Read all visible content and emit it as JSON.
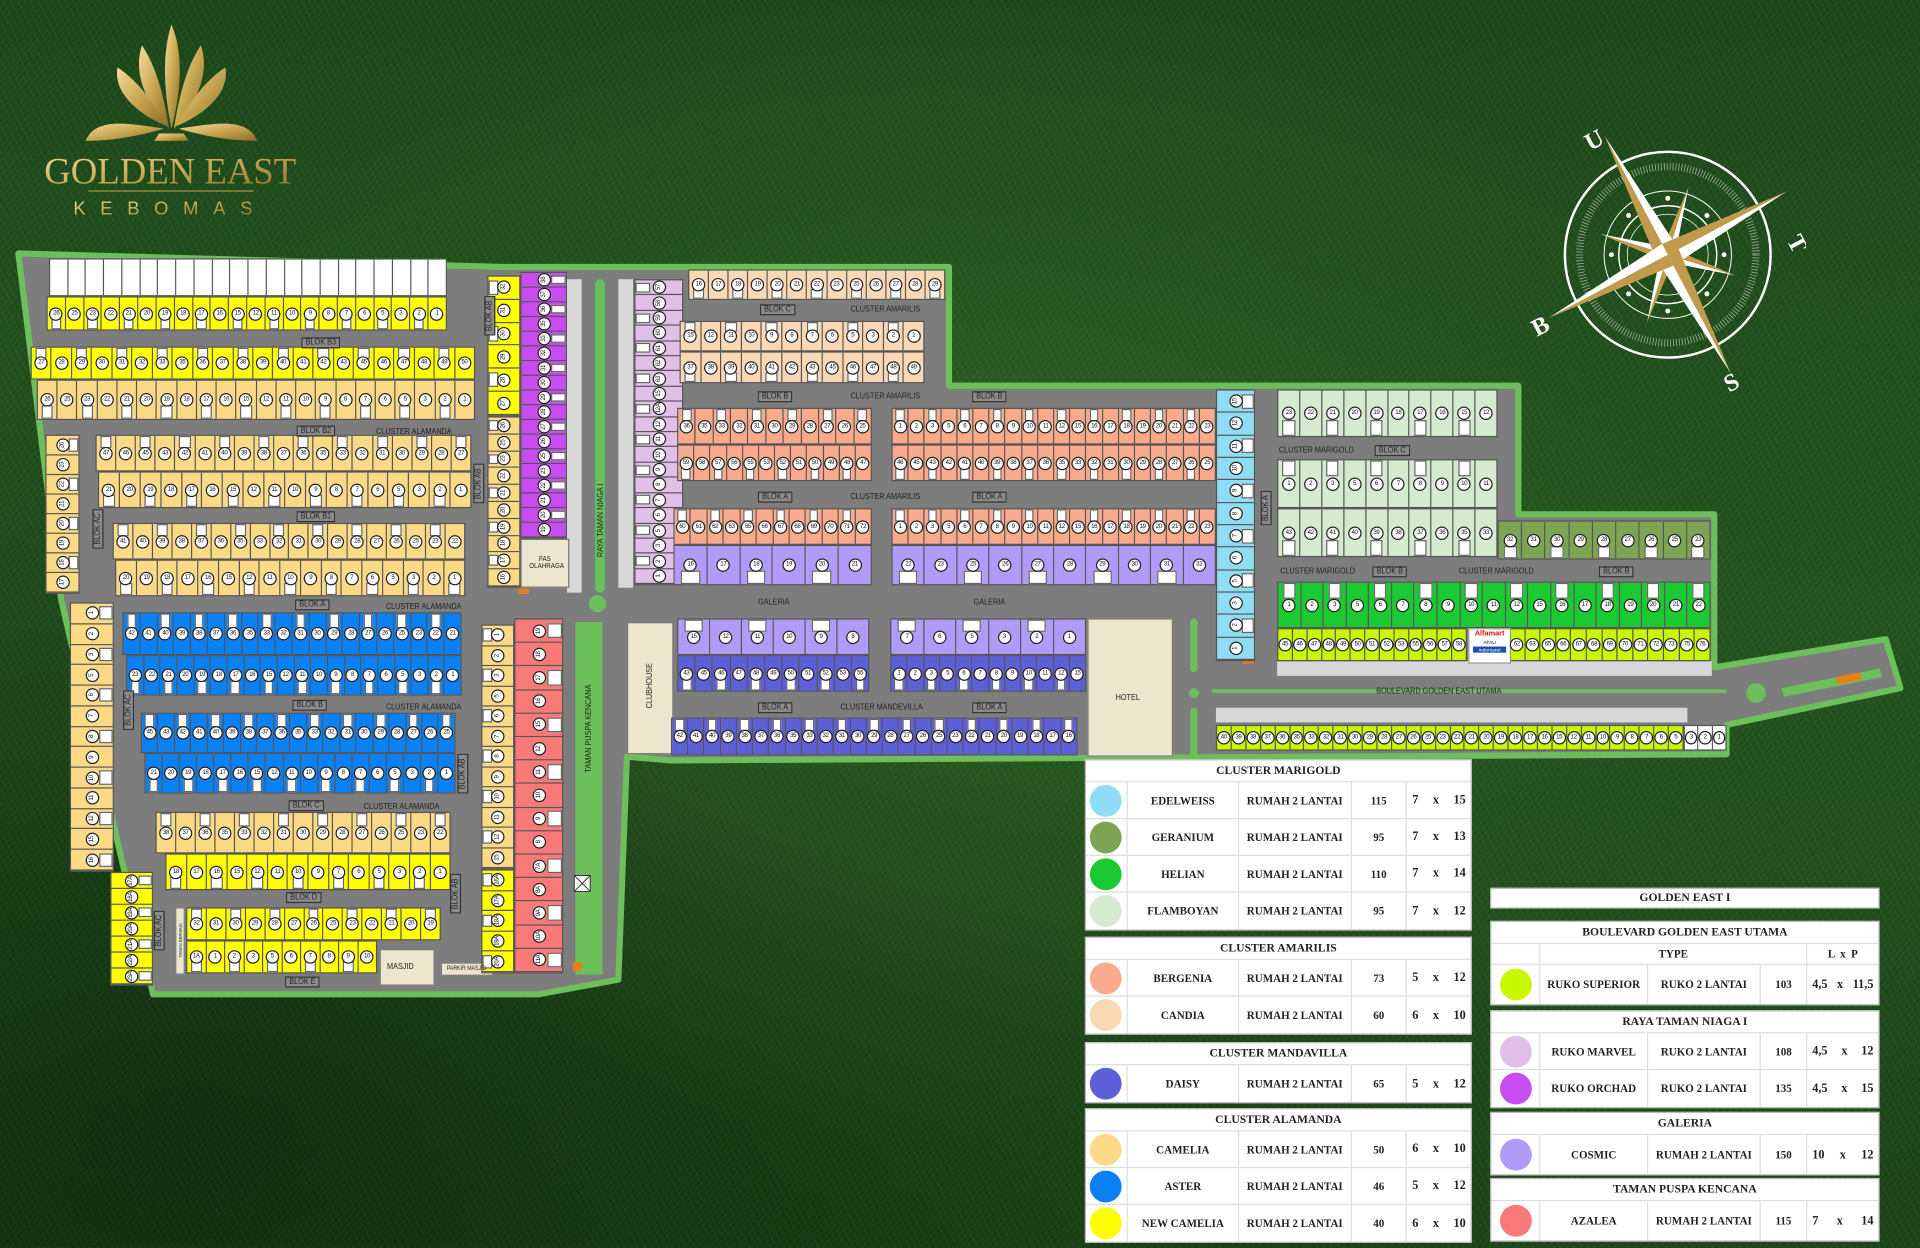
{
  "logo": {
    "title": "GOLDEN EAST",
    "subtitle": "KEBOMAS",
    "color": "#c8a752"
  },
  "compass": {
    "north": "U",
    "east": "T",
    "south": "S",
    "west": "B"
  },
  "colors": {
    "new_camelia": "#ffff00",
    "camelia": "#fbd985",
    "aster": "#0a80f5",
    "bergenia": "#f9a98c",
    "candia": "#fad8b4",
    "daisy": "#5d5fd8",
    "cosmic": "#b09cf8",
    "azalea": "#f87a78",
    "edelweiss": "#8fdcf5",
    "geranium": "#7da453",
    "helian": "#1bc933",
    "flamboyan": "#d4ebcf",
    "superior": "#c8f700",
    "marvel": "#e0c0e6",
    "orchad": "#c94cf0",
    "unsold": "#ffffff",
    "road": "#7d7d7d",
    "green": "#6cbf5a"
  },
  "map_labels": [
    "BLOK B3",
    "BLOK B2",
    "CLUSTER ALAMANDA",
    "BLOK B1",
    "BLOK A",
    "CLUSTER ALAMANDA",
    "BLOK B",
    "CLUSTER ALAMANDA",
    "BLOK C",
    "CLUSTER ALAMANDA",
    "BLOK D",
    "BLOK E",
    "BLOK AC",
    "BLOK AC",
    "BLOK AC",
    "BLOK AB",
    "BLOK AB",
    "BLOK AB",
    "BLOK AB",
    "RAYA TAMAN NIAGA I",
    "TAMAN PUSPA KENCANA",
    "FAS OLAHRAGA",
    "CLUBHOUSE",
    "MASJID",
    "PARKIR MASJID",
    "TAMAN BERMAIN",
    "BLOK C",
    "CLUSTER AMARILIS",
    "BLOK B",
    "CLUSTER AMARILIS",
    "BLOK B",
    "BLOK A",
    "CLUSTER AMARILIS",
    "BLOK A",
    "GALERIA",
    "GALERIA",
    "BLOK A",
    "CLUSTER MANDEVILLA",
    "BLOK A",
    "HOTEL",
    "BLOK A",
    "CLUSTER MARIGOLD",
    "BLOK C",
    "CLUSTER MARIGOLD",
    "BLOK B",
    "CLUSTER MARIGOLD",
    "BLOK B",
    "BOULEVARD GOLDEN EAST UTAMA"
  ],
  "store": {
    "brand1": "Alfamart",
    "or": "ATAU",
    "brand2": "Indomaret"
  },
  "lots": {
    "b3": {
      "type": "new_camelia",
      "numbers": [
        "26",
        "25",
        "23",
        "22",
        "21",
        "20",
        "19",
        "18",
        "17",
        "16",
        "15",
        "12",
        "11",
        "10",
        "9",
        "8",
        "7",
        "6",
        "5",
        "3",
        "2",
        "1"
      ]
    },
    "b2_up": {
      "type": "new_camelia",
      "numbers": [
        "27",
        "28",
        "29",
        "30",
        "31",
        "32",
        "33",
        "35",
        "36",
        "37",
        "38",
        "39",
        "40",
        "41",
        "42",
        "43",
        "45",
        "46",
        "47",
        "48",
        "49",
        "50"
      ]
    },
    "b2_low": {
      "type": "camelia",
      "numbers": [
        "26",
        "25",
        "23",
        "22",
        "21",
        "20",
        "19",
        "18",
        "17",
        "16",
        "15",
        "12",
        "11",
        "10",
        "9",
        "8",
        "7",
        "6",
        "5",
        "3",
        "2",
        "1"
      ]
    },
    "b1_up": {
      "type": "camelia",
      "numbers": [
        "47",
        "46",
        "45",
        "43",
        "42",
        "41",
        "40",
        "39",
        "38",
        "37",
        "36",
        "35",
        "33",
        "32",
        "31",
        "30",
        "29",
        "28",
        "27"
      ]
    },
    "b1_low": {
      "type": "camelia",
      "numbers": [
        "21",
        "20",
        "19",
        "18",
        "17",
        "16",
        "15",
        "12",
        "11",
        "10",
        "9",
        "8",
        "7",
        "6",
        "5",
        "3",
        "2",
        "1"
      ]
    },
    "a_up": {
      "type": "camelia",
      "numbers": [
        "41",
        "40",
        "39",
        "38",
        "37",
        "36",
        "35",
        "33",
        "32",
        "31",
        "30",
        "29",
        "28",
        "27",
        "26",
        "25",
        "23",
        "22"
      ]
    },
    "a_low": {
      "type": "camelia",
      "numbers": [
        "20",
        "19",
        "18",
        "17",
        "16",
        "15",
        "12",
        "11",
        "10",
        "9",
        "8",
        "7",
        "6",
        "5",
        "3",
        "2",
        "1"
      ]
    },
    "b_up": {
      "type": "aster",
      "numbers": [
        "42",
        "41",
        "40",
        "39",
        "38",
        "37",
        "36",
        "35",
        "33",
        "32",
        "31",
        "30",
        "29",
        "28",
        "27",
        "26",
        "25",
        "23",
        "22",
        "21"
      ]
    },
    "b_low": {
      "type": "aster",
      "numbers": [
        "23",
        "22",
        "21",
        "20",
        "19",
        "18",
        "17",
        "16",
        "15",
        "12",
        "11",
        "10",
        "9",
        "8",
        "7",
        "6",
        "5",
        "3",
        "2",
        "1"
      ]
    },
    "c_up": {
      "type": "aster",
      "numbers": [
        "45",
        "43",
        "42",
        "41",
        "40",
        "39",
        "38",
        "37",
        "36",
        "35",
        "33",
        "32",
        "31",
        "30",
        "29",
        "28",
        "27",
        "26",
        "25"
      ]
    },
    "c_low": {
      "type": "aster",
      "numbers": [
        "21",
        "20",
        "19",
        "18",
        "17",
        "16",
        "15",
        "12",
        "11",
        "10",
        "9",
        "8",
        "7",
        "6",
        "5",
        "3",
        "2",
        "1"
      ]
    },
    "d_up": {
      "type": "camelia",
      "numbers": [
        "38",
        "37",
        "36",
        "35",
        "33",
        "32",
        "31",
        "30",
        "29",
        "28",
        "27",
        "26",
        "25",
        "23",
        "22"
      ]
    },
    "d_low": {
      "type": "new_camelia",
      "numbers": [
        "18",
        "17",
        "16",
        "15",
        "12",
        "11",
        "10",
        "9",
        "7",
        "6",
        "5",
        "3",
        "2",
        "1"
      ]
    },
    "e_up": {
      "type": "new_camelia",
      "numbers": [
        "32",
        "31",
        "30",
        "29",
        "28",
        "27",
        "26",
        "25",
        "23",
        "22",
        "21",
        "20",
        "19"
      ]
    },
    "e_low": {
      "type": "new_camelia",
      "numbers": [
        "1A",
        "1",
        "2",
        "3",
        "5",
        "6",
        "7",
        "8",
        "9",
        "10"
      ]
    },
    "ac_top": {
      "type": "camelia",
      "numbers": [
        "26",
        "23",
        "22",
        "21",
        "20",
        "19",
        "18",
        "17"
      ]
    },
    "ac_mid": {
      "type": "camelia",
      "numbers": [
        "1",
        "2",
        "3",
        "5",
        "6",
        "7",
        "8",
        "9",
        "10",
        "11",
        "12",
        "15",
        "16"
      ]
    },
    "ac_low": {
      "type": "new_camelia",
      "numbers": [
        "17A",
        "18A",
        "19A",
        "20A",
        "21A",
        "22A",
        "23A"
      ]
    },
    "ab_yellow": {
      "type": "new_camelia",
      "numbers": [
        "32",
        "31",
        "30",
        "29",
        "28",
        "27"
      ]
    },
    "ab_camelia": {
      "type": "camelia",
      "numbers": [
        "26",
        "25",
        "23",
        "22",
        "21",
        "20",
        "19",
        "18",
        "17",
        "16"
      ]
    },
    "orchad": {
      "type": "orchad",
      "numbers": [
        "38",
        "37",
        "36",
        "35",
        "33",
        "32",
        "31",
        "30",
        "29",
        "28",
        "27",
        "26",
        "25",
        "23",
        "22",
        "21",
        "20",
        "19"
      ]
    },
    "ab2_camelia": {
      "type": "camelia",
      "numbers": [
        "1",
        "2",
        "3",
        "5",
        "6",
        "7",
        "8",
        "9",
        "10",
        "11",
        "12",
        "15"
      ]
    },
    "ab2_yellow": {
      "type": "new_camelia",
      "numbers": [
        "16A",
        "17A",
        "18A",
        "19A",
        "20A"
      ]
    },
    "azalea": {
      "type": "azalea",
      "numbers": [
        "19",
        "18",
        "17",
        "16",
        "15",
        "12",
        "11",
        "10",
        "9",
        "8",
        "7A",
        "8A",
        "9A",
        "10A",
        "11A"
      ]
    },
    "marvel": {
      "type": "marvel",
      "numbers": [
        "57",
        "58",
        "59",
        "60",
        "61",
        "62",
        "63",
        "15",
        "12A",
        "12",
        "11",
        "10",
        "9",
        "8",
        "7",
        "6",
        "5",
        "3",
        "2",
        "1"
      ]
    },
    "amar_c_top": {
      "type": "candia",
      "numbers": [
        "16",
        "17",
        "18",
        "19",
        "20",
        "21",
        "22",
        "23",
        "25",
        "26",
        "27",
        "28",
        "29"
      ]
    },
    "amar_c_up": {
      "type": "candia",
      "numbers": [
        "15",
        "12",
        "11",
        "10",
        "9",
        "8",
        "7",
        "6",
        "5",
        "3",
        "2",
        "1"
      ]
    },
    "amar_c_low": {
      "type": "candia",
      "numbers": [
        "37",
        "38",
        "39",
        "40",
        "41",
        "42",
        "43",
        "45",
        "46",
        "47",
        "48",
        "49"
      ]
    },
    "amar_bl_up": {
      "type": "bergenia",
      "numbers": [
        "36",
        "35",
        "33",
        "32",
        "31",
        "30",
        "29",
        "28",
        "27",
        "26",
        "25"
      ]
    },
    "amar_bl_low": {
      "type": "bergenia",
      "numbers": [
        "59",
        "58",
        "57",
        "56",
        "55",
        "53",
        "52",
        "51",
        "50",
        "49",
        "48",
        "47"
      ]
    },
    "amar_br_up": {
      "type": "bergenia",
      "numbers": [
        "1",
        "2",
        "3",
        "5",
        "6",
        "7",
        "8",
        "9",
        "10",
        "11",
        "12",
        "15",
        "16",
        "17",
        "18",
        "19",
        "20",
        "21",
        "22",
        "23"
      ]
    },
    "amar_br_low": {
      "type": "bergenia",
      "numbers": [
        "46",
        "45",
        "43",
        "42",
        "41",
        "40",
        "39",
        "38",
        "37",
        "36",
        "35",
        "33",
        "32",
        "31",
        "30",
        "29",
        "28",
        "27",
        "26",
        "25"
      ]
    },
    "amar_al": {
      "type": "bergenia",
      "numbers": [
        "60",
        "61",
        "62",
        "63",
        "65",
        "66",
        "67",
        "68",
        "69",
        "70",
        "71",
        "72"
      ]
    },
    "gal_nl": {
      "type": "cosmic",
      "numbers": [
        "16",
        "17",
        "18",
        "19",
        "20",
        "21"
      ]
    },
    "amar_ar": {
      "type": "bergenia",
      "numbers": [
        "1",
        "2",
        "3",
        "5",
        "6",
        "7",
        "8",
        "9",
        "10",
        "11",
        "12",
        "15",
        "16",
        "17",
        "18",
        "19",
        "20",
        "21",
        "22",
        "23"
      ]
    },
    "gal_nr": {
      "type": "cosmic",
      "numbers": [
        "22",
        "23",
        "25",
        "26",
        "27",
        "28",
        "29",
        "30",
        "31",
        "32"
      ]
    },
    "gal_sl": {
      "type": "cosmic",
      "numbers": [
        "15",
        "12",
        "11",
        "10",
        "9",
        "8"
      ]
    },
    "mand_ul": {
      "type": "daisy",
      "numbers": [
        "43",
        "45",
        "46",
        "47",
        "48",
        "49",
        "50",
        "51",
        "52",
        "53",
        "55"
      ]
    },
    "gal_sr": {
      "type": "cosmic",
      "numbers": [
        "7",
        "6",
        "5",
        "3",
        "2",
        "1"
      ]
    },
    "mand_ur": {
      "type": "daisy",
      "numbers": [
        "1",
        "2",
        "3",
        "5",
        "6",
        "7",
        "8",
        "9",
        "10",
        "11",
        "12",
        "15"
      ]
    },
    "mand_bottom": {
      "type": "daisy",
      "numbers": [
        "42",
        "41",
        "40",
        "39",
        "38",
        "37",
        "36",
        "35",
        "33",
        "32",
        "31",
        "30",
        "29",
        "28",
        "27",
        "26",
        "25",
        "23",
        "22",
        "21",
        "20",
        "19",
        "18",
        "17",
        "16"
      ]
    },
    "edelweiss": {
      "type": "edelweiss",
      "numbers": [
        "15",
        "12",
        "11",
        "10",
        "9",
        "8",
        "7",
        "6",
        "5",
        "3",
        "2",
        "1"
      ]
    },
    "mari_top": {
      "type": "flamboyan",
      "numbers": [
        "23",
        "22",
        "21",
        "20",
        "19",
        "18",
        "17",
        "16",
        "15",
        "12"
      ]
    },
    "mari_up": {
      "type": "flamboyan",
      "numbers": [
        "1",
        "2",
        "3",
        "5",
        "6",
        "7",
        "8",
        "9",
        "10",
        "11"
      ]
    },
    "mari_low": {
      "type": "flamboyan",
      "numbers": [
        "43",
        "42",
        "41",
        "40",
        "39",
        "38",
        "37",
        "36",
        "35",
        "33"
      ]
    },
    "geranium": {
      "type": "geranium",
      "numbers": [
        "32",
        "31",
        "30",
        "29",
        "28",
        "27",
        "26",
        "25",
        "23"
      ]
    },
    "helian": {
      "type": "helian",
      "numbers": [
        "1",
        "2",
        "3",
        "5",
        "6",
        "7",
        "8",
        "9",
        "10",
        "11",
        "12",
        "15",
        "16",
        "17",
        "18",
        "19",
        "20",
        "21",
        "22"
      ]
    },
    "sup_a": {
      "type": "superior",
      "numbers": [
        "45",
        "46",
        "47",
        "48",
        "49",
        "50",
        "51",
        "52",
        "53",
        "55",
        "56",
        "57",
        "58"
      ]
    },
    "sup_b": {
      "type": "superior",
      "numbers": [
        "62",
        "63",
        "65",
        "66",
        "67",
        "68",
        "69",
        "70",
        "71",
        "72",
        "73",
        "75",
        "76"
      ]
    },
    "sup_bottom": {
      "type": "superior",
      "numbers": [
        "40",
        "39",
        "38",
        "37",
        "36",
        "35",
        "33",
        "32",
        "31",
        "30",
        "29",
        "28",
        "27",
        "26",
        "25",
        "23",
        "22",
        "21",
        "20",
        "19",
        "18",
        "17",
        "16",
        "15",
        "12",
        "11",
        "10",
        "9",
        "8",
        "7",
        "6",
        "5"
      ]
    },
    "sup_white": {
      "type": "unsold",
      "numbers": [
        "3",
        "2",
        "1"
      ]
    }
  },
  "legend_left": [
    {
      "title": "CLUSTER MARIGOLD",
      "rows": [
        {
          "color": "#8fdcf5",
          "name": "EDELWEISS",
          "type": "RUMAH 2 LANTAI",
          "size": "115",
          "l": "7",
          "x": "x",
          "p": "15"
        },
        {
          "color": "#7da453",
          "name": "GERANIUM",
          "type": "RUMAH 2 LANTAI",
          "size": "95",
          "l": "7",
          "x": "x",
          "p": "13"
        },
        {
          "color": "#1bc933",
          "name": "HELIAN",
          "type": "RUMAH 2 LANTAI",
          "size": "110",
          "l": "7",
          "x": "x",
          "p": "14"
        },
        {
          "color": "#d4ebcf",
          "name": "FLAMBOYAN",
          "type": "RUMAH 2 LANTAI",
          "size": "95",
          "l": "7",
          "x": "x",
          "p": "12"
        }
      ]
    },
    {
      "title": "CLUSTER AMARILIS",
      "rows": [
        {
          "color": "#f9a98c",
          "name": "BERGENIA",
          "type": "RUMAH 2 LANTAI",
          "size": "73",
          "l": "5",
          "x": "x",
          "p": "12"
        },
        {
          "color": "#fad8b4",
          "name": "CANDIA",
          "type": "RUMAH 2 LANTAI",
          "size": "60",
          "l": "6",
          "x": "x",
          "p": "10"
        }
      ]
    },
    {
      "title": "CLUSTER MANDAVILLA",
      "rows": [
        {
          "color": "#5d5fd8",
          "name": "DAISY",
          "type": "RUMAH 2 LANTAI",
          "size": "65",
          "l": "5",
          "x": "x",
          "p": "12"
        }
      ]
    },
    {
      "title": "CLUSTER ALAMANDA",
      "rows": [
        {
          "color": "#fbd985",
          "name": "CAMELIA",
          "type": "RUMAH 2 LANTAI",
          "size": "50",
          "l": "6",
          "x": "x",
          "p": "10"
        },
        {
          "color": "#0a80f5",
          "name": "ASTER",
          "type": "RUMAH 2 LANTAI",
          "size": "46",
          "l": "5",
          "x": "x",
          "p": "12"
        },
        {
          "color": "#ffff00",
          "name": "NEW CAMELIA",
          "type": "RUMAH 2 LANTAI",
          "size": "40",
          "l": "6",
          "x": "x",
          "p": "10"
        }
      ]
    }
  ],
  "legend_right": {
    "title": "GOLDEN EAST I",
    "col_type": "TYPE",
    "col_lxp": "L  x  P",
    "sections": [
      {
        "title": "BOULEVARD GOLDEN EAST UTAMA",
        "rows": [
          {
            "color": "#c8f700",
            "name": "RUKO SUPERIOR",
            "type": "RUKO 2 LANTAI",
            "size": "103",
            "l": "4,5",
            "x": "x",
            "p": "11,5"
          }
        ]
      },
      {
        "title": "RAYA TAMAN NIAGA I",
        "rows": [
          {
            "color": "#e0c0e6",
            "name": "RUKO MARVEL",
            "type": "RUKO 2 LANTAI",
            "size": "108",
            "l": "4,5",
            "x": "x",
            "p": "12"
          },
          {
            "color": "#c94cf0",
            "name": "RUKO ORCHAD",
            "type": "RUKO 2 LANTAI",
            "size": "135",
            "l": "4,5",
            "x": "x",
            "p": "15"
          }
        ]
      },
      {
        "title": "GALERIA",
        "rows": [
          {
            "color": "#b09cf8",
            "name": "COSMIC",
            "type": "RUMAH 2 LANTAI",
            "size": "150",
            "l": "10",
            "x": "x",
            "p": "12"
          }
        ]
      },
      {
        "title": "TAMAN PUSPA KENCANA",
        "rows": [
          {
            "color": "#f87a78",
            "name": "AZALEA",
            "type": "RUMAH 2 LANTAI",
            "size": "115",
            "l": "7",
            "x": "x",
            "p": "14"
          }
        ]
      }
    ]
  }
}
